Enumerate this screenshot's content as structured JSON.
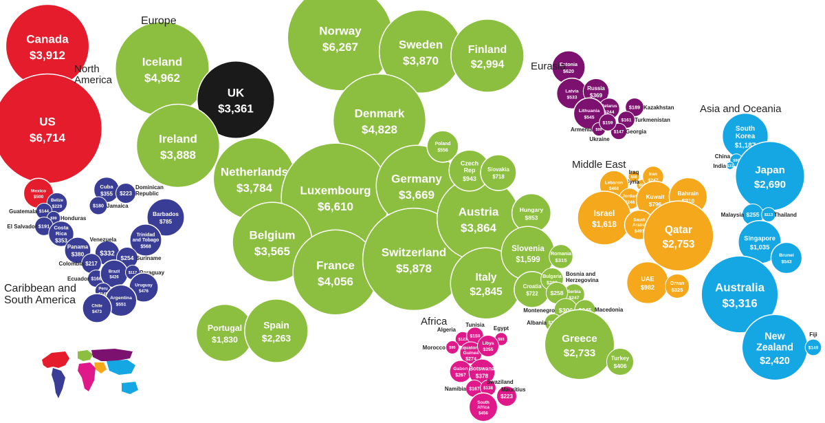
{
  "chart_data": {
    "type": "bubble",
    "colors": {
      "North America": "#e41c2b",
      "Europe": "#8cbf3f",
      "UK": "#1a1a1a",
      "Eurasia": "#7d1170",
      "Caribbean and South America": "#3a3d96",
      "Africa": "#e0198a",
      "Middle East": "#f5a81c",
      "Asia and Oceania": "#14a7e3"
    },
    "regions": [
      {
        "name": "North America",
        "countries": [
          {
            "name": "Canada",
            "display": "$3,912",
            "value": 3912
          },
          {
            "name": "US",
            "display": "$6,714",
            "value": 6714
          },
          {
            "name": "Mexico",
            "display": "$500",
            "value": 500
          }
        ]
      },
      {
        "name": "Europe",
        "countries": [
          {
            "name": "Iceland",
            "display": "$4,962",
            "value": 4962
          },
          {
            "name": "UK",
            "display": "$3,361",
            "value": 3361
          },
          {
            "name": "Ireland",
            "display": "$3,888",
            "value": 3888
          },
          {
            "name": "Norway",
            "display": "$6,267",
            "value": 6267
          },
          {
            "name": "Sweden",
            "display": "$3,870",
            "value": 3870
          },
          {
            "name": "Finland",
            "display": "$2,994",
            "value": 2994
          },
          {
            "name": "Denmark",
            "display": "$4,828",
            "value": 4828
          },
          {
            "name": "Netherlands",
            "display": "$3,784",
            "value": 3784
          },
          {
            "name": "Luxembourg",
            "display": "$6,610",
            "value": 6610
          },
          {
            "name": "Germany",
            "display": "$3,669",
            "value": 3669
          },
          {
            "name": "Belgium",
            "display": "$3,565",
            "value": 3565
          },
          {
            "name": "France",
            "display": "$4,056",
            "value": 4056
          },
          {
            "name": "Switzerland",
            "display": "$5,878",
            "value": 5878
          },
          {
            "name": "Austria",
            "display": "$3,864",
            "value": 3864
          },
          {
            "name": "Italy",
            "display": "$2,845",
            "value": 2845
          },
          {
            "name": "Portugal",
            "display": "$1,830",
            "value": 1830
          },
          {
            "name": "Spain",
            "display": "$2,263",
            "value": 2263
          },
          {
            "name": "Poland",
            "display": "$556",
            "value": 556
          },
          {
            "name": "Czech Rep",
            "display": "$943",
            "value": 943
          },
          {
            "name": "Slovakia",
            "display": "$718",
            "value": 718
          },
          {
            "name": "Hungary",
            "display": "$853",
            "value": 853
          },
          {
            "name": "Slovenia",
            "display": "$1,599",
            "value": 1599
          },
          {
            "name": "Romania",
            "display": "$315",
            "value": 315
          },
          {
            "name": "Croatia",
            "display": "$722",
            "value": 722
          },
          {
            "name": "Bulgaria",
            "display": "$283",
            "value": 283
          },
          {
            "name": "Serbia",
            "display": "$247",
            "value": 247
          },
          {
            "name": "Bosnia and Herzegovina",
            "display": "$258",
            "value": 258
          },
          {
            "name": "Montenegro",
            "display": "$306",
            "value": 306
          },
          {
            "name": "Macedonia",
            "display": "$245",
            "value": 245
          },
          {
            "name": "Albania",
            "display": "$174",
            "value": 174
          },
          {
            "name": "Greece",
            "display": "$2,733",
            "value": 2733
          },
          {
            "name": "Turkey",
            "display": "$406",
            "value": 406
          }
        ]
      },
      {
        "name": "Eurasia",
        "countries": [
          {
            "name": "Estonia",
            "display": "$620",
            "value": 620
          },
          {
            "name": "Latvia",
            "display": "$533",
            "value": 533
          },
          {
            "name": "Russia",
            "display": "$369",
            "value": 369
          },
          {
            "name": "Belarus",
            "display": "$244",
            "value": 244
          },
          {
            "name": "Lithuania",
            "display": "$545",
            "value": 545
          },
          {
            "name": "Kazakhstan",
            "display": "$189",
            "value": 189
          },
          {
            "name": "Turkmenistan",
            "display": "$161",
            "value": 161
          },
          {
            "name": "Armenia",
            "display": "$99",
            "value": 99
          },
          {
            "name": "Georgia",
            "display": "$147",
            "value": 147
          },
          {
            "name": "Ukraine",
            "display": "$159",
            "value": 159
          }
        ]
      },
      {
        "name": "Caribbean and South America",
        "countries": [
          {
            "name": "Belize",
            "display": "$229",
            "value": 229
          },
          {
            "name": "Cuba",
            "display": "$355",
            "value": 355
          },
          {
            "name": "Dominican Republic",
            "display": "$223",
            "value": 223
          },
          {
            "name": "Jamaica",
            "display": "$180",
            "value": 180
          },
          {
            "name": "Guatemala",
            "display": "$144",
            "value": 144
          },
          {
            "name": "Honduras",
            "display": "$99",
            "value": 99
          },
          {
            "name": "El Salvador",
            "display": "$191",
            "value": 191
          },
          {
            "name": "Costa Rica",
            "display": "$353",
            "value": 353
          },
          {
            "name": "Barbados",
            "display": "$785",
            "value": 785
          },
          {
            "name": "Trinidad and Tobago",
            "display": "$568",
            "value": 568
          },
          {
            "name": "Panama",
            "display": "$380",
            "value": 380
          },
          {
            "name": "Venezuela",
            "display": "$332",
            "value": 332
          },
          {
            "name": "Suriname",
            "display": "$254",
            "value": 254
          },
          {
            "name": "Colombia",
            "display": "$217",
            "value": 217
          },
          {
            "name": "Ecuador",
            "display": "$166",
            "value": 166
          },
          {
            "name": "Brazil",
            "display": "$426",
            "value": 426
          },
          {
            "name": "Paraguay",
            "display": "$117",
            "value": 117
          },
          {
            "name": "Peru",
            "display": "$145",
            "value": 145
          },
          {
            "name": "Uruguay",
            "display": "$476",
            "value": 476
          },
          {
            "name": "Argentina",
            "display": "$551",
            "value": 551
          },
          {
            "name": "Chile",
            "display": "$473",
            "value": 473
          }
        ]
      },
      {
        "name": "Africa",
        "countries": [
          {
            "name": "Algeria",
            "display": "$123",
            "value": 123
          },
          {
            "name": "Tunisia",
            "display": "$159",
            "value": 159
          },
          {
            "name": "Egypt",
            "display": "$93",
            "value": 93
          },
          {
            "name": "Morocco",
            "display": "$95",
            "value": 95
          },
          {
            "name": "Equatorial Guinea",
            "display": "$274",
            "value": 274
          },
          {
            "name": "Libya",
            "display": "$255",
            "value": 255
          },
          {
            "name": "Gabon",
            "display": "$267",
            "value": 267
          },
          {
            "name": "Botswana",
            "display": "$378",
            "value": 378
          },
          {
            "name": "Namibia",
            "display": "$167",
            "value": 167
          },
          {
            "name": "Swaziland",
            "display": "$138",
            "value": 138
          },
          {
            "name": "Mauritius",
            "display": "$223",
            "value": 223
          },
          {
            "name": "South Africa",
            "display": "$456",
            "value": 456
          }
        ]
      },
      {
        "name": "Middle East",
        "countries": [
          {
            "name": "Iraq",
            "display": "$68",
            "value": 68
          },
          {
            "name": "Syria",
            "display": "$67",
            "value": 67
          },
          {
            "name": "Iran",
            "display": "$247",
            "value": 247
          },
          {
            "name": "Lebanon",
            "display": "$468",
            "value": 468
          },
          {
            "name": "Jordan",
            "display": "$246",
            "value": 246
          },
          {
            "name": "Kuwait",
            "display": "$796",
            "value": 796
          },
          {
            "name": "Bahrain",
            "display": "$810",
            "value": 810
          },
          {
            "name": "Israel",
            "display": "$1,618",
            "value": 1618
          },
          {
            "name": "Saudi Arabia",
            "display": "$491",
            "value": 491
          },
          {
            "name": "Qatar",
            "display": "$2,753",
            "value": 2753
          },
          {
            "name": "UAE",
            "display": "$982",
            "value": 982
          },
          {
            "name": "Oman",
            "display": "$325",
            "value": 325
          }
        ]
      },
      {
        "name": "Asia and Oceania",
        "countries": [
          {
            "name": "South Korea",
            "display": "$1,187",
            "value": 1187
          },
          {
            "name": "China",
            "display": "$90",
            "value": 90
          },
          {
            "name": "India",
            "display": "$31",
            "value": 31
          },
          {
            "name": "Japan",
            "display": "$2,690",
            "value": 2690
          },
          {
            "name": "Malaysia",
            "display": "$255",
            "value": 255
          },
          {
            "name": "Thailand",
            "display": "$113",
            "value": 113
          },
          {
            "name": "Singapore",
            "display": "$1,035",
            "value": 1035
          },
          {
            "name": "Brunei",
            "display": "$543",
            "value": 543
          },
          {
            "name": "Australia",
            "display": "$3,316",
            "value": 3316
          },
          {
            "name": "New Zealand",
            "display": "$2,420",
            "value": 2420
          },
          {
            "name": "Fiji",
            "display": "$149",
            "value": 149
          }
        ]
      }
    ]
  },
  "region_labels": {
    "europe": "Europe",
    "north_america": [
      "North",
      "America"
    ],
    "eurasia": "Eurasia",
    "asia_oceania": "Asia and Oceania",
    "middle_east": "Middle East",
    "caribbean": [
      "Caribbean and",
      "South America"
    ],
    "africa": "Africa"
  },
  "bubble_labels": {
    "Canada": [
      "Canada"
    ],
    "US": [
      "US"
    ],
    "Iceland": [
      "Iceland"
    ],
    "UK": [
      "UK"
    ],
    "Ireland": [
      "Ireland"
    ],
    "Norway": [
      "Norway"
    ],
    "Sweden": [
      "Sweden"
    ],
    "Finland": [
      "Finland"
    ],
    "Denmark": [
      "Denmark"
    ],
    "Netherlands": [
      "Netherlands"
    ],
    "Luxembourg": [
      "Luxembourg"
    ],
    "Germany": [
      "Germany"
    ],
    "Belgium": [
      "Belgium"
    ],
    "France": [
      "France"
    ],
    "Switzerland": [
      "Switzerland"
    ],
    "Austria": [
      "Austria"
    ],
    "Italy": [
      "Italy"
    ],
    "Portugal": [
      "Portugal"
    ],
    "Spain": [
      "Spain"
    ],
    "Greece": [
      "Greece"
    ],
    "Slovenia": [
      "Slovenia"
    ],
    "Hungary": [
      "Hungary"
    ],
    "Czech Rep": [
      "Czech",
      "Rep"
    ],
    "Poland": [
      "Poland"
    ],
    "Slovakia": [
      "Slovakia"
    ],
    "Croatia": [
      "Croatia"
    ],
    "Romania": [
      "Romania"
    ],
    "Bulgaria": [
      "Bulgaria"
    ],
    "Serbia": [
      "Serbia"
    ],
    "Turkey": [
      "Turkey"
    ],
    "Estonia": [
      "Estonia"
    ],
    "Latvia": [
      "Latvia"
    ],
    "Russia": [
      "Russia"
    ],
    "Belarus": [
      "Belarus"
    ],
    "Lithuania": [
      "Lithuania"
    ],
    "Mexico": [
      "Mexico"
    ],
    "Belize": [
      "Belize"
    ],
    "Cuba": [
      "Cuba"
    ],
    "Costa Rica": [
      "Costa",
      "Rica"
    ],
    "Barbados": [
      "Barbados"
    ],
    "Trinidad and Tobago": [
      "Trinidad",
      "and Tobago"
    ],
    "Panama": [
      "Panama"
    ],
    "Brazil": [
      "Brazil"
    ],
    "Peru": [
      "Peru"
    ],
    "Uruguay": [
      "Uruguay"
    ],
    "Argentina": [
      "Argentina"
    ],
    "Chile": [
      "Chile"
    ],
    "Equatorial Guinea": [
      "Equatorial",
      "Guinea"
    ],
    "Libya": [
      "Libya"
    ],
    "Gabon": [
      "Gabon"
    ],
    "Botswana": [
      "Botswana"
    ],
    "South Africa": [
      "South",
      "Africa"
    ],
    "Lebanon": [
      "Lebanon"
    ],
    "Jordan": [
      "Jordan"
    ],
    "Iran": [
      "Iran"
    ],
    "Kuwait": [
      "Kuwait"
    ],
    "Bahrain": [
      "Bahrain"
    ],
    "Israel": [
      "Israel"
    ],
    "Saudi Arabia": [
      "Saudi",
      "Arabia"
    ],
    "Qatar": [
      "Qatar"
    ],
    "UAE": [
      "UAE"
    ],
    "Oman": [
      "Oman"
    ],
    "South Korea": [
      "South",
      "Korea"
    ],
    "Japan": [
      "Japan"
    ],
    "Singapore": [
      "Singapore"
    ],
    "Brunei": [
      "Brunei"
    ],
    "Australia": [
      "Australia"
    ],
    "New Zealand": [
      "New",
      "Zealand"
    ]
  },
  "external_labels": {
    "Dominican Republic": [
      "Dominican",
      "Republic"
    ],
    "Jamaica": [
      "Jamaica"
    ],
    "Guatemala": [
      "Guatemala"
    ],
    "Honduras": [
      "Honduras"
    ],
    "El Salvador": [
      "El Salvador"
    ],
    "Venezuela": [
      "Venezuela"
    ],
    "Suriname": [
      "Suriname"
    ],
    "Colombia": [
      "Colombia"
    ],
    "Ecuador": [
      "Ecuador"
    ],
    "Paraguay": [
      "Paraguay"
    ],
    "Kazakhstan": [
      "Kazakhstan"
    ],
    "Turkmenistan": [
      "Turkmenistan"
    ],
    "Armenia": [
      "Armenia"
    ],
    "Georgia": [
      "Georgia"
    ],
    "Ukraine": [
      "Ukraine"
    ],
    "Bosnia and Herzegovina": [
      "Bosnia and",
      "Herzegovina"
    ],
    "Montenegro": [
      "Montenegro"
    ],
    "Macedonia": [
      "Macedonia"
    ],
    "Albania": [
      "Albania"
    ],
    "Algeria": [
      "Algeria"
    ],
    "Tunisia": [
      "Tunisia"
    ],
    "Egypt": [
      "Egypt"
    ],
    "Morocco": [
      "Morocco"
    ],
    "Namibia": [
      "Namibia"
    ],
    "Swaziland": [
      "Swaziland"
    ],
    "Mauritius": [
      "Mauritius"
    ],
    "Iraq": [
      "Iraq"
    ],
    "Syria": [
      "Syria"
    ],
    "China": [
      "China"
    ],
    "India": [
      "India"
    ],
    "Malaysia": [
      "Malaysia"
    ],
    "Thailand": [
      "Thailand"
    ],
    "Fiji": [
      "Fiji"
    ]
  }
}
